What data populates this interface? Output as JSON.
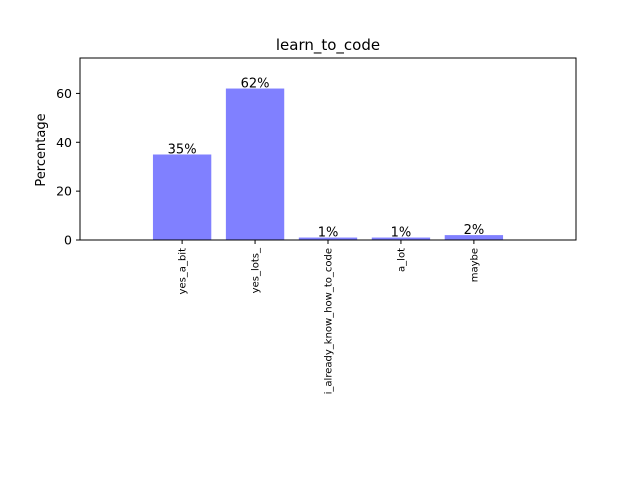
{
  "chart_data": {
    "type": "bar",
    "title": "learn_to_code",
    "xlabel": "",
    "ylabel": "Percentage",
    "categories": [
      "yes_a_bit",
      "yes_lots_",
      "i_already_know_how_to_code",
      "a_lot",
      "maybe"
    ],
    "values": [
      35,
      62,
      1,
      1,
      2
    ],
    "data_labels": [
      "35%",
      "62%",
      "1%",
      "1%",
      "2%"
    ],
    "ylim": [
      0,
      74.5
    ],
    "yticks": [
      0,
      20,
      40,
      60
    ],
    "ytick_labels": [
      "0",
      "20",
      "40",
      "60"
    ],
    "grid": false,
    "bar_color": "#8080ff"
  }
}
